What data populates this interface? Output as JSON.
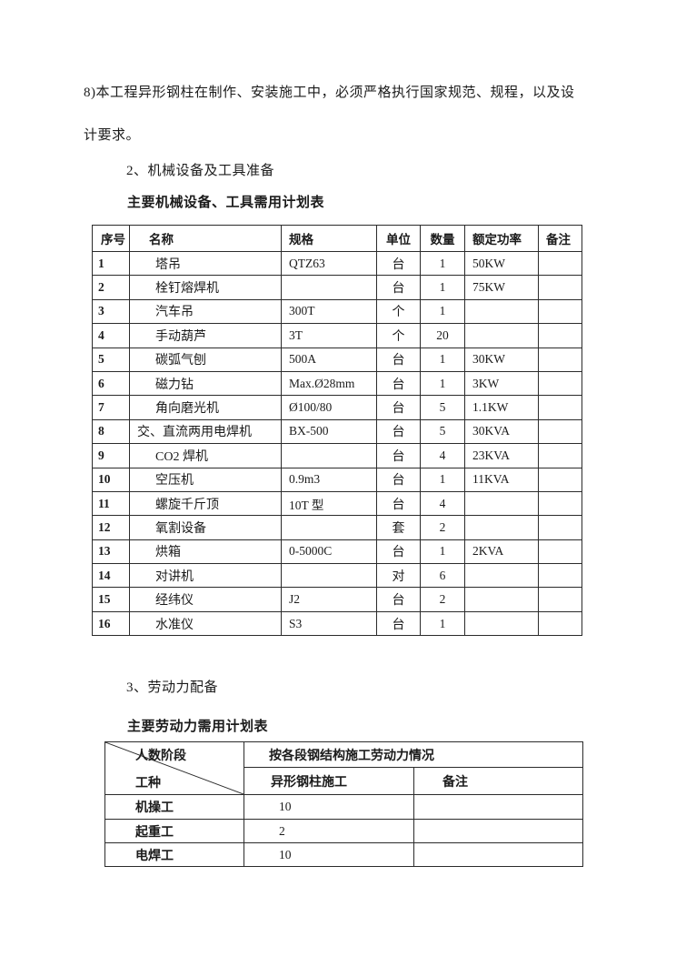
{
  "page": {
    "paragraph_lines": [
      "8)本工程异形钢柱在制作、安装施工中，必须严格执行国家规范、规程，以及设",
      "计要求。"
    ],
    "section2_heading": "2、机械设备及工具准备",
    "equipment_table_title": "主要机械设备、工具需用计划表",
    "section3_heading": "3、劳动力配备",
    "labor_table_title": "主要劳动力需用计划表"
  },
  "equipment_table": {
    "headers": [
      "序号",
      "名称",
      "规格",
      "单位",
      "数量",
      "额定功率",
      "备注"
    ],
    "rows": [
      [
        "1",
        "塔吊",
        "QTZ63",
        "台",
        "1",
        "50KW",
        ""
      ],
      [
        "2",
        "栓钉熔焊机",
        "",
        "台",
        "1",
        "75KW",
        ""
      ],
      [
        "3",
        "汽车吊",
        "300T",
        "个",
        "1",
        "",
        ""
      ],
      [
        "4",
        "手动葫芦",
        "3T",
        "个",
        "20",
        "",
        ""
      ],
      [
        "5",
        "碳弧气刨",
        "500A",
        "台",
        "1",
        "30KW",
        ""
      ],
      [
        "6",
        "磁力钻",
        "Max.Ø28mm",
        "台",
        "1",
        "3KW",
        ""
      ],
      [
        "7",
        "角向磨光机",
        "Ø100/80",
        "台",
        "5",
        "1.1KW",
        ""
      ],
      [
        "8",
        "交、直流两用电焊机",
        "BX-500",
        "台",
        "5",
        "30KVA",
        ""
      ],
      [
        "9",
        "CO2 焊机",
        "",
        "台",
        "4",
        "23KVA",
        ""
      ],
      [
        "10",
        "空压机",
        "0.9m3",
        "台",
        "1",
        "11KVA",
        ""
      ],
      [
        "11",
        "螺旋千斤顶",
        "10T 型",
        "台",
        "4",
        "",
        ""
      ],
      [
        "12",
        "氧割设备",
        "",
        "套",
        "2",
        "",
        ""
      ],
      [
        "13",
        "烘箱",
        "0-5000C",
        "台",
        "1",
        "2KVA",
        ""
      ],
      [
        "14",
        "对讲机",
        "",
        "对",
        "6",
        "",
        ""
      ],
      [
        "15",
        "经纬仪",
        "J2",
        "台",
        "2",
        "",
        ""
      ],
      [
        "16",
        "水准仪",
        "S3",
        "台",
        "1",
        "",
        ""
      ]
    ]
  },
  "labor_table": {
    "corner": {
      "top_right": "人数阶段",
      "bottom_left": "工种"
    },
    "span_header": "按各段钢结构施工劳动力情况",
    "sub_headers": [
      "异形钢柱施工",
      "备注"
    ],
    "rows": [
      {
        "trade": "机操工",
        "count": "10",
        "note": ""
      },
      {
        "trade": "起重工",
        "count": "2",
        "note": ""
      },
      {
        "trade": "电焊工",
        "count": "10",
        "note": ""
      }
    ]
  }
}
